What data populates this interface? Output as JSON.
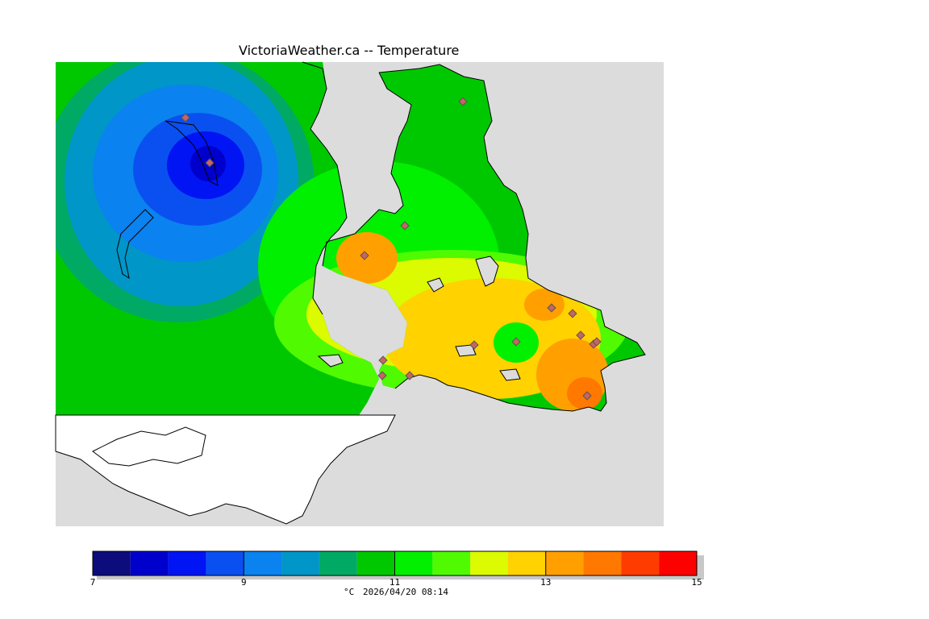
{
  "title": "VictoriaWeather.ca -- Temperature",
  "colors": {
    "background": "#ffffff",
    "map_background": "#dcdcdc",
    "coast": "#000000",
    "station": "#c86464"
  },
  "legend": {
    "unit": "°C",
    "timestamp": "2026/04/20 08:14",
    "tick_labels": [
      "7",
      "9",
      "11",
      "13",
      "15"
    ],
    "min": 7,
    "max": 15,
    "bins": [
      {
        "from": 7.0,
        "to": 7.5,
        "color": "#0c0c7c"
      },
      {
        "from": 7.5,
        "to": 8.0,
        "color": "#0000cc"
      },
      {
        "from": 8.0,
        "to": 8.5,
        "color": "#0014f4"
      },
      {
        "from": 8.5,
        "to": 9.0,
        "color": "#0a50f0"
      },
      {
        "from": 9.0,
        "to": 9.5,
        "color": "#0a82f0"
      },
      {
        "from": 9.5,
        "to": 10.0,
        "color": "#0096c8"
      },
      {
        "from": 10.0,
        "to": 10.5,
        "color": "#00aa64"
      },
      {
        "from": 10.5,
        "to": 11.0,
        "color": "#00c800"
      },
      {
        "from": 11.0,
        "to": 11.5,
        "color": "#00f000"
      },
      {
        "from": 11.5,
        "to": 12.0,
        "color": "#50fa00"
      },
      {
        "from": 12.0,
        "to": 12.5,
        "color": "#dcfa00"
      },
      {
        "from": 12.5,
        "to": 13.0,
        "color": "#ffd200"
      },
      {
        "from": 13.0,
        "to": 13.5,
        "color": "#ffa000"
      },
      {
        "from": 13.5,
        "to": 14.0,
        "color": "#ff7800"
      },
      {
        "from": 14.0,
        "to": 14.5,
        "color": "#ff3c00"
      },
      {
        "from": 14.5,
        "to": 15.0,
        "color": "#ff0000"
      }
    ]
  }
}
